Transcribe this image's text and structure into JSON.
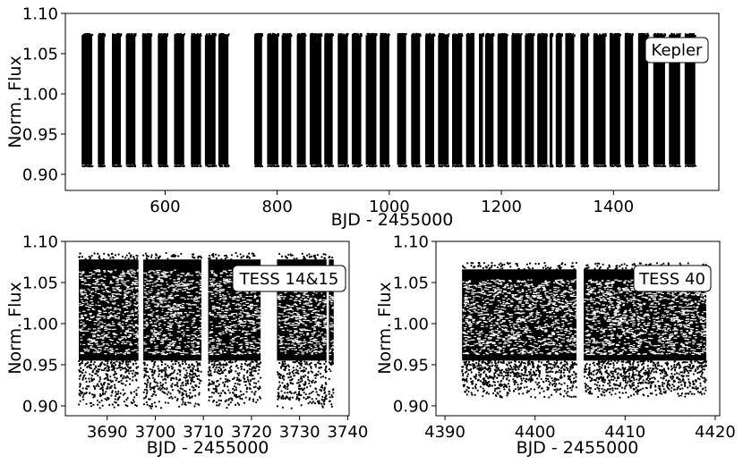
{
  "chart_data": [
    {
      "type": "scatter",
      "panel_label": "Kepler",
      "xlabel": "BJD - 2455000",
      "ylabel": "Norm. Flux",
      "xlim": [
        422,
        1588
      ],
      "ylim": [
        0.88,
        1.1
      ],
      "xticks": [
        600,
        800,
        1000,
        1200,
        1400
      ],
      "yticks": [
        0.9,
        0.95,
        1.0,
        1.05,
        1.1
      ],
      "flux_range": [
        0.912,
        1.073
      ],
      "segments": [
        [
          451,
          470
        ],
        [
          480,
          492
        ],
        [
          505,
          521
        ],
        [
          530,
          547
        ],
        [
          559,
          576
        ],
        [
          587,
          604
        ],
        [
          616,
          634
        ],
        [
          646,
          664
        ],
        [
          671,
          690
        ],
        [
          695,
          713
        ],
        [
          759,
          773
        ],
        [
          782,
          802
        ],
        [
          808,
          825
        ],
        [
          835,
          851
        ],
        [
          858,
          879
        ],
        [
          884,
          899
        ],
        [
          908,
          926
        ],
        [
          933,
          950
        ],
        [
          958,
          977
        ],
        [
          983,
          1000
        ],
        [
          1014,
          1030
        ],
        [
          1039,
          1055
        ],
        [
          1064,
          1080
        ],
        [
          1087,
          1106
        ],
        [
          1112,
          1130
        ],
        [
          1137,
          1152
        ],
        [
          1160,
          1167
        ],
        [
          1171,
          1186
        ],
        [
          1193,
          1211
        ],
        [
          1218,
          1236
        ],
        [
          1242,
          1258
        ],
        [
          1264,
          1282
        ],
        [
          1286,
          1291
        ],
        [
          1297,
          1308
        ],
        [
          1314,
          1330
        ],
        [
          1341,
          1355
        ],
        [
          1364,
          1386
        ],
        [
          1393,
          1412
        ],
        [
          1420,
          1435
        ],
        [
          1444,
          1462
        ],
        [
          1471,
          1492
        ],
        [
          1499,
          1519
        ],
        [
          1527,
          1546
        ]
      ]
    },
    {
      "type": "scatter",
      "panel_label": "TESS 14&15",
      "xlabel": "BJD - 2455000",
      "ylabel": "Norm. Flux",
      "xlim": [
        3681.3,
        3740.3
      ],
      "ylim": [
        0.888,
        1.1
      ],
      "xticks": [
        3690,
        3700,
        3710,
        3720,
        3730,
        3740
      ],
      "yticks": [
        0.9,
        0.95,
        1.0,
        1.05,
        1.1
      ],
      "segments": [
        [
          3684.1,
          3696.5
        ],
        [
          3697.5,
          3709.6
        ],
        [
          3711.0,
          3721.9
        ],
        [
          3725.3,
          3735.6
        ],
        [
          3736.1,
          3737.1
        ]
      ]
    },
    {
      "type": "scatter",
      "panel_label": "TESS 40",
      "xlabel": "BJD - 2455000",
      "ylabel": "Norm. Flux",
      "xlim": [
        4389.0,
        4420.5
      ],
      "ylim": [
        0.888,
        1.1
      ],
      "xticks": [
        4390,
        4400,
        4410,
        4420
      ],
      "yticks": [
        0.9,
        0.95,
        1.0,
        1.05,
        1.1
      ],
      "segments": [
        [
          4391.9,
          4404.6
        ],
        [
          4405.4,
          4419.0
        ]
      ]
    }
  ]
}
